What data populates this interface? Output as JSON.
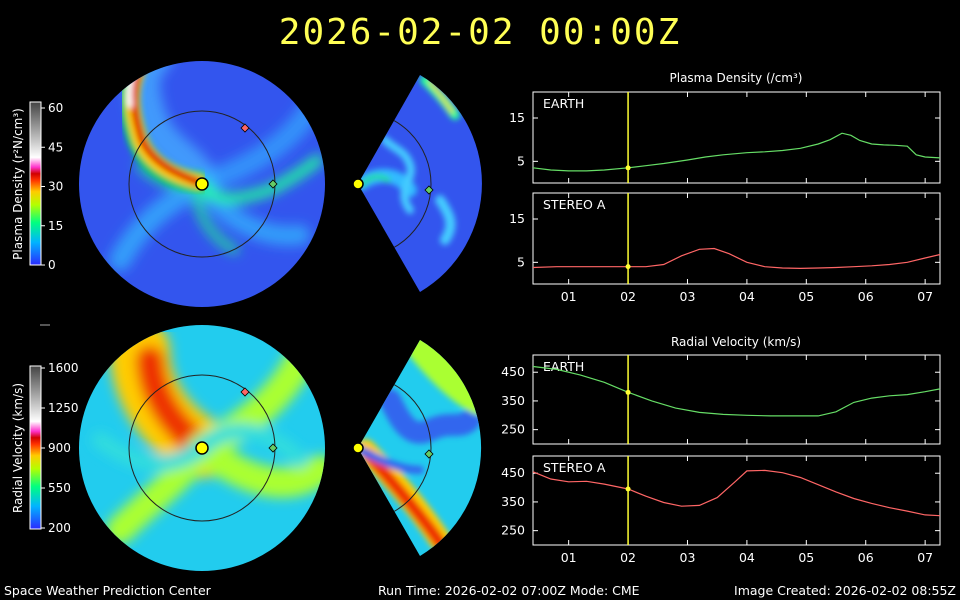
{
  "header": {
    "title": "2026-02-02  00:00Z"
  },
  "footer": {
    "left": "Space Weather Prediction Center",
    "middle": "Run Time: 2026-02-02 07:00Z  Mode: CME",
    "right": "Image Created: 2026-02-02 08:55Z"
  },
  "density_colorbar": {
    "label": "Plasma Density (r²N/cm³)",
    "ticks": [
      "0",
      "15",
      "30",
      "45",
      "60"
    ],
    "range": [
      0,
      60
    ]
  },
  "velocity_colorbar": {
    "label": "Radial Velocity (km/s)",
    "ticks": [
      "200",
      "550",
      "900",
      "1250",
      "1600"
    ],
    "range": [
      200,
      1600
    ]
  },
  "colors": {
    "earth_line": "#66dd66",
    "stereo_line": "#ff6666",
    "time_marker": "#ffff33",
    "sun": "#ffff00",
    "earth_marker": "#66cc66",
    "stereo_marker": "#ff6666"
  },
  "chart_data": [
    {
      "type": "line",
      "title": "Plasma Density (/cm³)",
      "panel": "EARTH",
      "x_unit": "day of month",
      "xlim": [
        0.4,
        7.25
      ],
      "ylim": [
        0,
        21
      ],
      "yticks": [
        5,
        15
      ],
      "xticks": [
        "01",
        "02",
        "03",
        "04",
        "05",
        "06",
        "07"
      ],
      "marker_x": 2.0,
      "grid": false,
      "x": [
        0.4,
        0.7,
        1.0,
        1.3,
        1.6,
        2.0,
        2.3,
        2.6,
        3.0,
        3.3,
        3.6,
        4.0,
        4.3,
        4.6,
        4.9,
        5.2,
        5.4,
        5.6,
        5.75,
        5.9,
        6.1,
        6.3,
        6.5,
        6.7,
        6.85,
        7.0,
        7.25
      ],
      "y": [
        3.5,
        3.0,
        2.8,
        2.8,
        3.0,
        3.5,
        4.0,
        4.5,
        5.3,
        6.0,
        6.5,
        7.0,
        7.2,
        7.5,
        8.0,
        9.0,
        10.0,
        11.5,
        11.0,
        9.8,
        9.0,
        8.8,
        8.7,
        8.5,
        6.5,
        6.0,
        5.8
      ]
    },
    {
      "type": "line",
      "panel": "STEREO A",
      "x_unit": "day of month",
      "xlim": [
        0.4,
        7.25
      ],
      "ylim": [
        0,
        21
      ],
      "yticks": [
        5,
        15
      ],
      "xticks": [
        "01",
        "02",
        "03",
        "04",
        "05",
        "06",
        "07"
      ],
      "marker_x": 2.0,
      "grid": false,
      "x": [
        0.4,
        0.8,
        1.2,
        1.6,
        2.0,
        2.3,
        2.6,
        2.9,
        3.2,
        3.45,
        3.7,
        4.0,
        4.3,
        4.6,
        4.9,
        5.2,
        5.5,
        5.8,
        6.1,
        6.4,
        6.7,
        7.0,
        7.25
      ],
      "y": [
        3.8,
        4.0,
        4.0,
        4.0,
        4.0,
        4.0,
        4.5,
        6.5,
        8.0,
        8.2,
        7.0,
        5.0,
        4.0,
        3.7,
        3.6,
        3.7,
        3.8,
        4.0,
        4.2,
        4.5,
        5.0,
        6.0,
        6.8
      ]
    },
    {
      "type": "line",
      "title": "Radial Velocity (km/s)",
      "panel": "EARTH",
      "x_unit": "day of month",
      "xlim": [
        0.4,
        7.25
      ],
      "ylim": [
        200,
        510
      ],
      "yticks": [
        250,
        350,
        450
      ],
      "xticks": [
        "01",
        "02",
        "03",
        "04",
        "05",
        "06",
        "07"
      ],
      "marker_x": 2.0,
      "grid": false,
      "x": [
        0.4,
        0.8,
        1.2,
        1.6,
        2.0,
        2.4,
        2.8,
        3.2,
        3.6,
        4.0,
        4.4,
        4.8,
        5.2,
        5.5,
        5.8,
        6.1,
        6.4,
        6.7,
        7.0,
        7.25
      ],
      "y": [
        470,
        460,
        440,
        415,
        380,
        350,
        325,
        310,
        303,
        300,
        298,
        298,
        298,
        312,
        345,
        360,
        368,
        372,
        382,
        392
      ]
    },
    {
      "type": "line",
      "panel": "STEREO A",
      "x_unit": "day of month",
      "xlim": [
        0.4,
        7.25
      ],
      "ylim": [
        200,
        510
      ],
      "yticks": [
        250,
        350,
        450
      ],
      "xticks": [
        "01",
        "02",
        "03",
        "04",
        "05",
        "06",
        "07"
      ],
      "marker_x": 2.0,
      "grid": false,
      "x": [
        0.4,
        0.7,
        1.0,
        1.3,
        1.6,
        2.0,
        2.3,
        2.6,
        2.9,
        3.2,
        3.5,
        3.8,
        4.0,
        4.3,
        4.6,
        4.9,
        5.2,
        5.5,
        5.8,
        6.1,
        6.4,
        6.7,
        7.0,
        7.25
      ],
      "y": [
        455,
        430,
        420,
        422,
        412,
        395,
        370,
        348,
        335,
        338,
        365,
        420,
        458,
        460,
        452,
        435,
        410,
        385,
        362,
        345,
        330,
        318,
        305,
        302
      ]
    }
  ]
}
